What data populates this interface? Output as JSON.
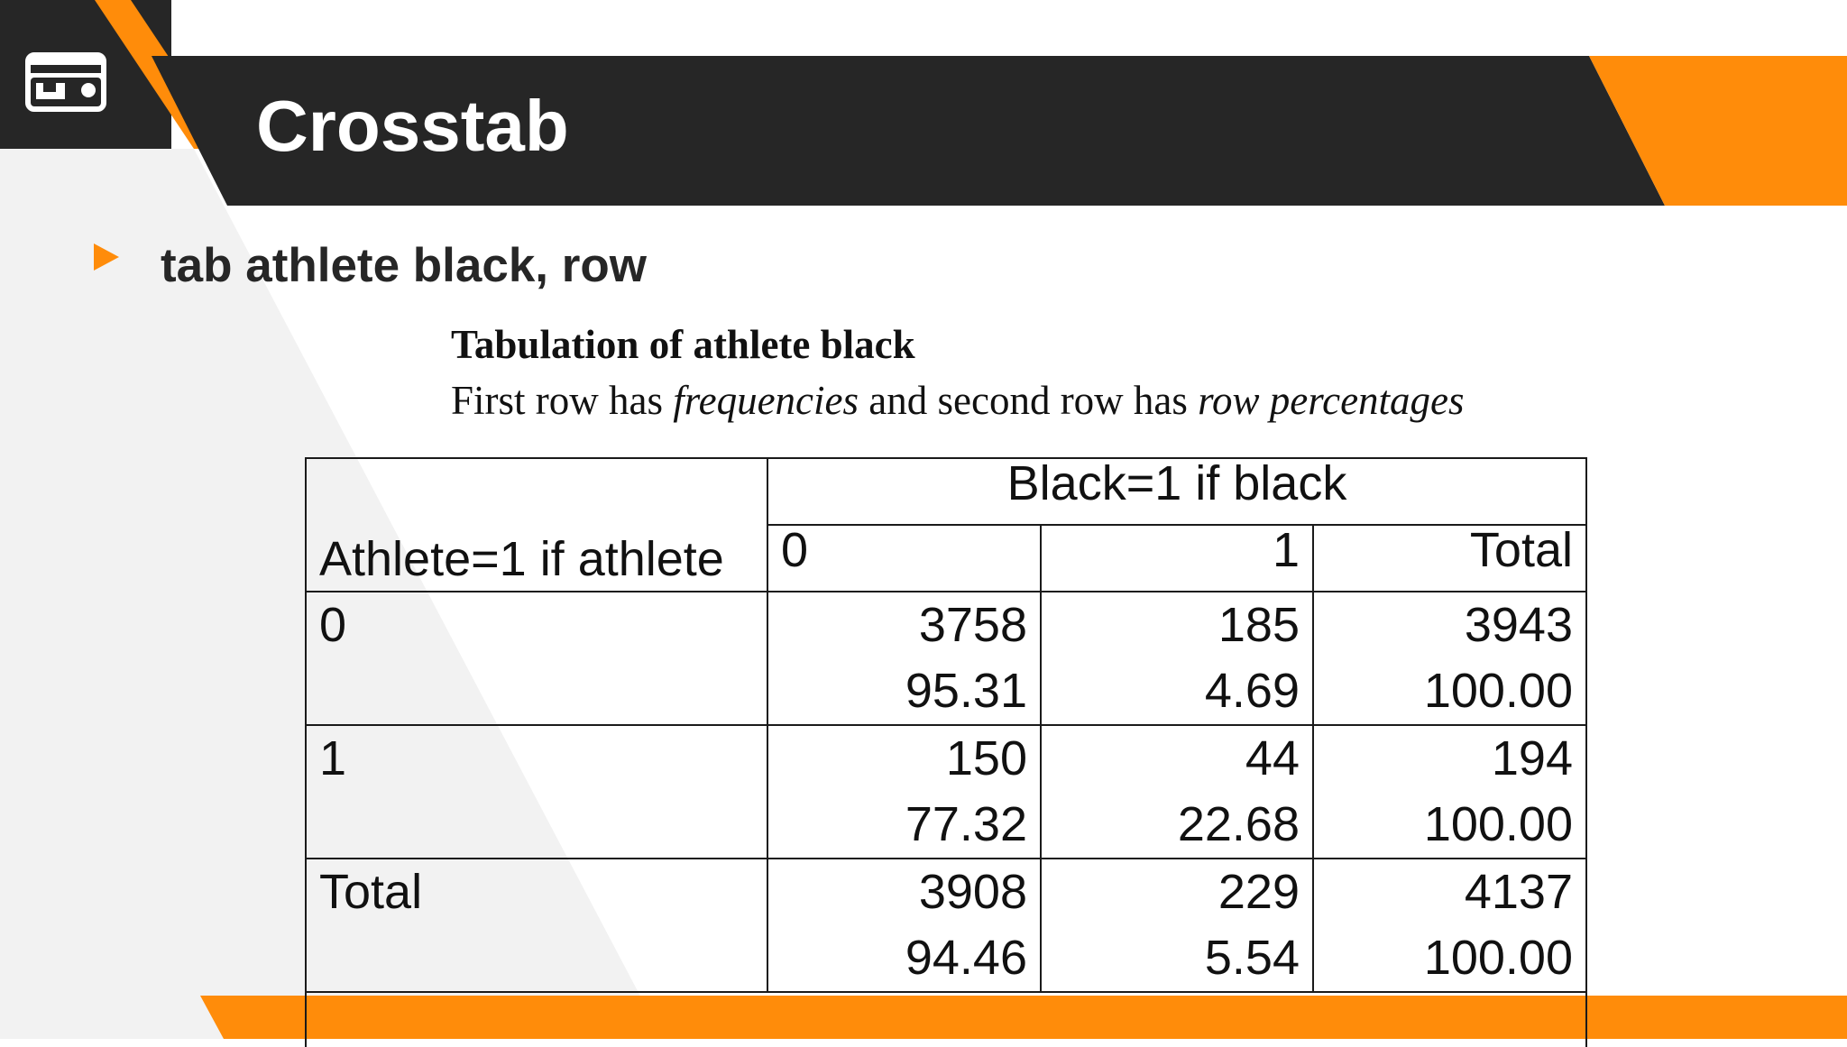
{
  "slide": {
    "title": "Crosstab",
    "bullet": "tab athlete black, row"
  },
  "colors": {
    "accent": "#ff8c0a",
    "dark_band": "#262626",
    "light_panel": "#f2f2f2"
  },
  "icons": {
    "app_icon": "card-icon",
    "bullet_icon": "triangle-bullet-icon"
  },
  "tabulation": {
    "title": "Tabulation of athlete black",
    "subtitle_prefix": "First row has ",
    "subtitle_italic1": "frequencies",
    "subtitle_middle": " and second row has ",
    "subtitle_italic2": "row percentages",
    "table": {
      "row_var_label": "Athlete=1 if athlete",
      "col_var_label": "Black=1 if black",
      "col_headers": [
        "0",
        "1",
        "Total"
      ],
      "rows": [
        {
          "label": "0",
          "frequencies": [
            "3758",
            "185",
            "3943"
          ],
          "percentages": [
            "95.31",
            "4.69",
            "100.00"
          ]
        },
        {
          "label": "1",
          "frequencies": [
            "150",
            "44",
            "194"
          ],
          "percentages": [
            "77.32",
            "22.68",
            "100.00"
          ]
        },
        {
          "label": "Total",
          "frequencies": [
            "3908",
            "229",
            "4137"
          ],
          "percentages": [
            "94.46",
            "5.54",
            "100.00"
          ]
        }
      ]
    }
  }
}
